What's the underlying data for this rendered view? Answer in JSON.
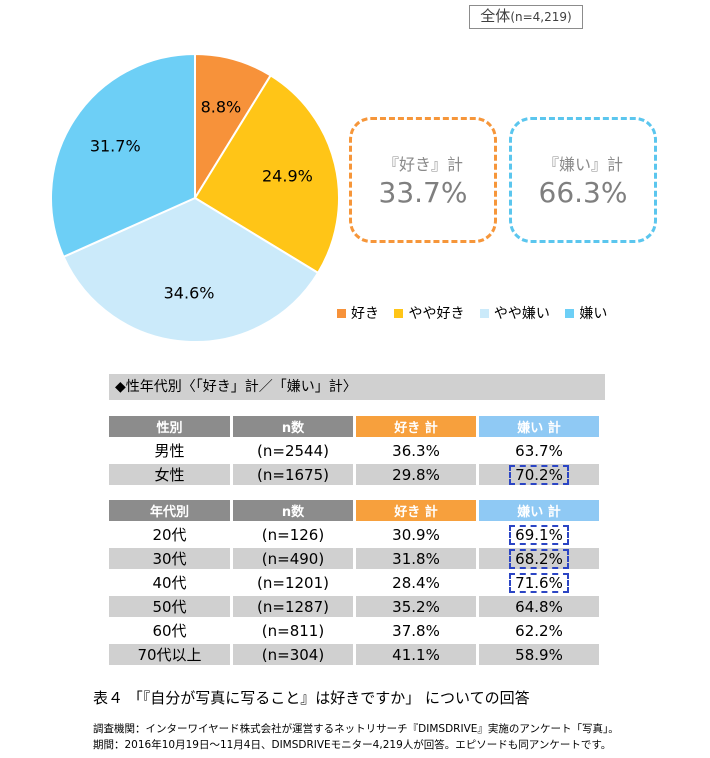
{
  "overall": {
    "label": "全体",
    "n": "(n=4,219)"
  },
  "chart_data": {
    "type": "pie",
    "slices": [
      {
        "name": "好き",
        "value": 8.8,
        "label": "8.8%",
        "color": "#f7923a"
      },
      {
        "name": "やや好き",
        "value": 24.9,
        "label": "24.9%",
        "color": "#ffc517"
      },
      {
        "name": "やや嫌い",
        "value": 34.6,
        "label": "34.6%",
        "color": "#cbeafa"
      },
      {
        "name": "嫌い",
        "value": 31.7,
        "label": "31.7%",
        "color": "#6dcff6"
      }
    ]
  },
  "summary": {
    "like": {
      "label": "『好き』計",
      "value": "33.7%"
    },
    "dislike": {
      "label": "『嫌い』計",
      "value": "66.3%"
    }
  },
  "legend": [
    {
      "label": "好き",
      "color": "#f7923a"
    },
    {
      "label": "やや好き",
      "color": "#ffc517"
    },
    {
      "label": "やや嫌い",
      "color": "#cbeafa"
    },
    {
      "label": "嫌い",
      "color": "#6dcff6"
    }
  ],
  "section_title": "◆性年代別〈「好き」計／「嫌い」計〉",
  "gender_table": {
    "headers": [
      "性別",
      "n数",
      "好き 計",
      "嫌い 計"
    ],
    "rows": [
      [
        "男性",
        "(n=2544)",
        "36.3%",
        "63.7%"
      ],
      [
        "女性",
        "(n=1675)",
        "29.8%",
        "70.2%"
      ]
    ]
  },
  "age_table": {
    "headers": [
      "年代別",
      "n数",
      "好き 計",
      "嫌い 計"
    ],
    "rows": [
      [
        "20代",
        "(n=126)",
        "30.9%",
        "69.1%"
      ],
      [
        "30代",
        "(n=490)",
        "31.8%",
        "68.2%"
      ],
      [
        "40代",
        "(n=1201)",
        "28.4%",
        "71.6%"
      ],
      [
        "50代",
        "(n=1287)",
        "35.2%",
        "64.8%"
      ],
      [
        "60代",
        "(n=811)",
        "37.8%",
        "62.2%"
      ],
      [
        "70代以上",
        "(n=304)",
        "41.1%",
        "58.9%"
      ]
    ]
  },
  "caption": "表４ 「『自分が写真に写ること』は好きですか」 についての回答",
  "notes": [
    "調査機関：インターワイヤード株式会社が運営するネットリサーチ『DIMSDRIVE』実施のアンケート「写真」。",
    "期間：2016年10月19日～11月4日、DIMSDRIVEモニター4,219人が回答。エピソードも同アンケートです。"
  ]
}
